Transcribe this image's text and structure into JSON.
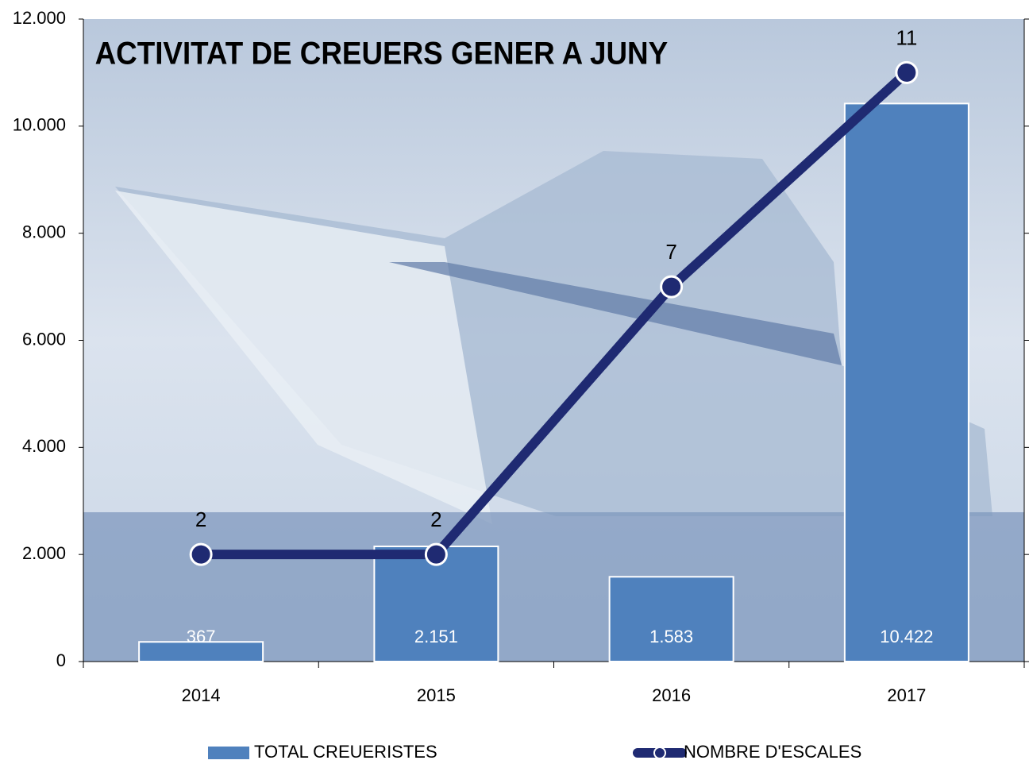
{
  "chart_data": {
    "type": "bar",
    "title": "ACTIVITAT DE CREUERS   GENER A JUNY",
    "categories": [
      "2014",
      "2015",
      "2016",
      "2017"
    ],
    "series": [
      {
        "name": "TOTAL CREUERISTES",
        "color": "#4f81bd",
        "values": [
          367,
          2151,
          1583,
          10422
        ],
        "value_labels": [
          "367",
          "2.151",
          "1.583",
          "10.422"
        ]
      },
      {
        "name": "NOMBRE D'ESCALES",
        "type": "line",
        "axis": "y2",
        "color": "#1f2a72",
        "values": [
          2,
          2,
          7,
          11
        ]
      }
    ],
    "ylim": [
      0,
      12000
    ],
    "yticks": [
      0,
      {
        "value": 2000,
        "label": "2.000"
      },
      {
        "value": 4000,
        "label": "4.000"
      },
      {
        "value": 6000,
        "label": "6.000"
      },
      {
        "value": 8000,
        "label": "8.000"
      },
      {
        "value": 10000,
        "label": "10.000"
      },
      {
        "value": 12000,
        "label": "12.000"
      }
    ],
    "y2lim": [
      0,
      12
    ],
    "legend": "bottom"
  }
}
